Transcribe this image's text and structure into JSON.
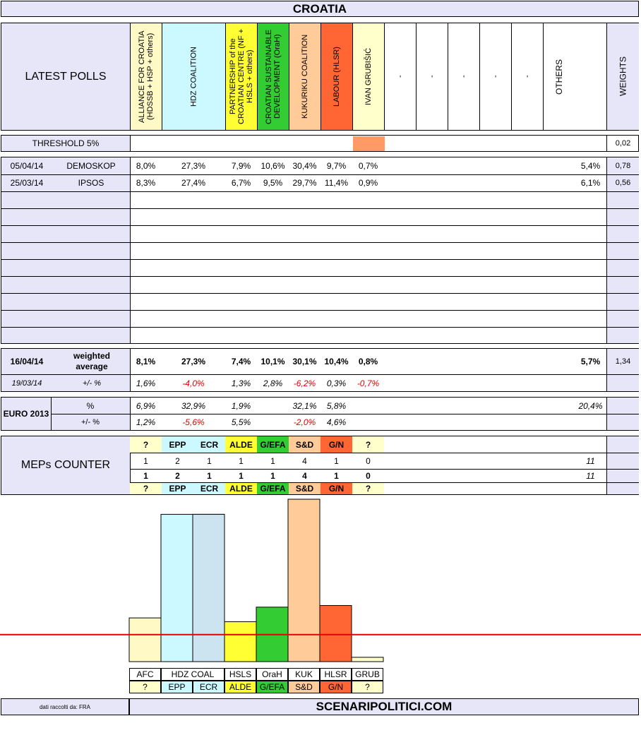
{
  "title": "CROATIA",
  "colors": {
    "lavender": "#e6e6f8",
    "afc": "#fff9c6",
    "hdz": "#ccf8ff",
    "partnership": "#ffff33",
    "orah": "#33cc33",
    "kuk": "#ffcc99",
    "labour": "#ff6633",
    "ivan": "#ffffcc",
    "threshold_line": "#e00000"
  },
  "header": {
    "latest_polls": "LATEST POLLS",
    "weights": "WEIGHTS",
    "others": "OTHERS",
    "parties": [
      "ALLIANCE FOR CROATIA (HDSSB + HSP + others)",
      "HDZ COALITION",
      "PARTNERSHIP of the CROATIAN CENTRE (NF + HSLS + others)",
      "CROATIAN SUSTAINABLE DEVELOPMENT (OraH)",
      "KUKURIKU COALITION",
      "LABOUR (HLSR)",
      "IVAN GRUBIŠIĆ",
      "-",
      "-",
      "-",
      "-",
      "-"
    ]
  },
  "threshold": {
    "label": "THRESHOLD 5%",
    "weight": "0,02"
  },
  "polls": [
    {
      "date": "05/04/14",
      "institute": "DEMOSKOP",
      "values": [
        "8,0%",
        "27,3%",
        "7,9%",
        "10,6%",
        "30,4%",
        "9,7%",
        "0,7%"
      ],
      "others": "5,4%",
      "weight": "0,78"
    },
    {
      "date": "25/03/14",
      "institute": "IPSOS",
      "values": [
        "8,3%",
        "27,4%",
        "6,7%",
        "9,5%",
        "29,7%",
        "11,4%",
        "0,9%"
      ],
      "others": "6,1%",
      "weight": "0,56"
    }
  ],
  "average": {
    "date": "16/04/14",
    "label": "weighted average",
    "values": [
      "8,1%",
      "27,3%",
      "7,4%",
      "10,1%",
      "30,1%",
      "10,4%",
      "0,8%"
    ],
    "others": "5,7%",
    "weight": "1,34",
    "prev_date": "19/03/14",
    "delta_label": "+/- %",
    "deltas": [
      "1,6%",
      "-4,0%",
      "1,3%",
      "2,8%",
      "-6,2%",
      "0,3%",
      "-0,7%"
    ]
  },
  "euro": {
    "label": "EURO 2013",
    "pct_label": "%",
    "delta_label": "+/- %",
    "values": [
      "6,9%",
      "32,9%",
      "1,9%",
      "",
      "32,1%",
      "5,8%",
      ""
    ],
    "others": "20,4%",
    "deltas": [
      "1,2%",
      "-5,6%",
      "5,5%",
      "",
      "-2,0%",
      "4,6%",
      ""
    ]
  },
  "meps": {
    "label": "MEPs COUNTER",
    "groups": [
      "?",
      "EPP",
      "ECR",
      "ALDE",
      "G/EFA",
      "S&D",
      "G/N",
      "?"
    ],
    "row1": [
      "1",
      "2",
      "1",
      "1",
      "1",
      "4",
      "1",
      "0"
    ],
    "total1": "11",
    "row2": [
      "1",
      "2",
      "1",
      "1",
      "1",
      "4",
      "1",
      "0"
    ],
    "total2": "11"
  },
  "chart_data": {
    "type": "bar",
    "categories": [
      "AFC",
      "HDZ COAL",
      "HSLS",
      "OraH",
      "KUK",
      "HLSR",
      "GRUB"
    ],
    "values": [
      8.1,
      27.3,
      7.4,
      10.1,
      30.1,
      10.4,
      0.8
    ],
    "threshold": 5,
    "ylim": [
      0,
      30.1
    ],
    "groups": [
      "?",
      "EPP",
      "ECR",
      "ALDE",
      "G/EFA",
      "S&D",
      "G/N",
      "?"
    ]
  },
  "footer": {
    "credit": "dati raccolti da: FRA",
    "site": "SCENARIPOLITICI.COM"
  }
}
